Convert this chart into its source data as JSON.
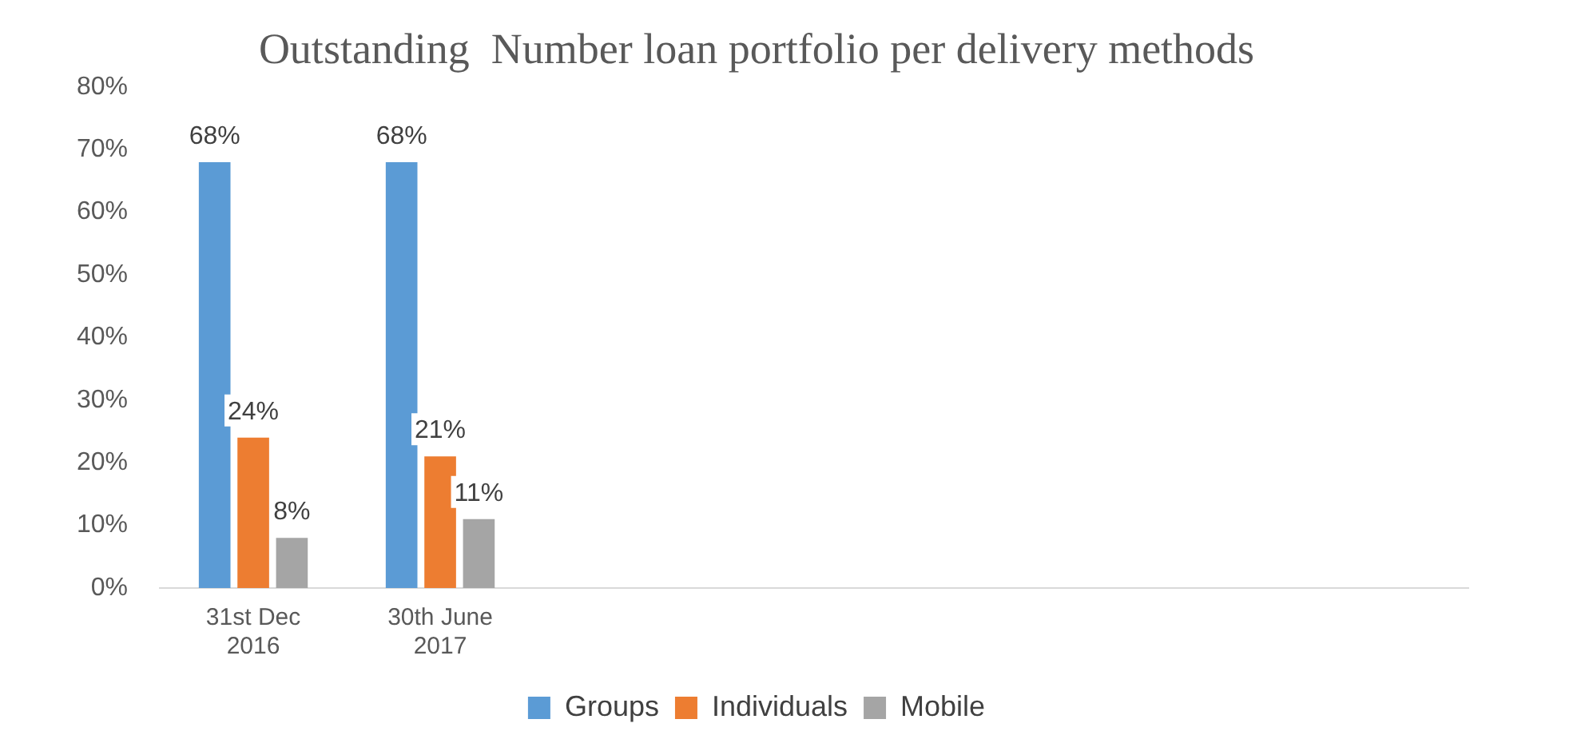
{
  "chart_data": {
    "type": "bar",
    "title": "Outstanding  Number loan portfolio per delivery methods",
    "categories": [
      "31st Dec\n2016",
      "30th June\n2017",
      null,
      null,
      null,
      null,
      null
    ],
    "series": [
      {
        "name": "Groups",
        "color": "#5b9bd5",
        "values": [
          68,
          68,
          null,
          null,
          null,
          null,
          null
        ],
        "value_labels": [
          "68%",
          "68%",
          null,
          null,
          null,
          null,
          null
        ]
      },
      {
        "name": "Individuals",
        "color": "#ed7d31",
        "values": [
          24,
          21,
          null,
          null,
          null,
          null,
          null
        ],
        "value_labels": [
          "24%",
          "21%",
          null,
          null,
          null,
          null,
          null
        ]
      },
      {
        "name": "Mobile",
        "color": "#a5a5a5",
        "values": [
          8,
          11,
          null,
          null,
          null,
          null,
          null
        ],
        "value_labels": [
          "8%",
          "11%",
          null,
          null,
          null,
          null,
          null
        ]
      }
    ],
    "ylim": [
      0,
      80
    ],
    "yticks": [
      {
        "value": 0,
        "label": "0%"
      },
      {
        "value": 10,
        "label": "10%"
      },
      {
        "value": 20,
        "label": "20%"
      },
      {
        "value": 30,
        "label": "30%"
      },
      {
        "value": 40,
        "label": "40%"
      },
      {
        "value": 50,
        "label": "50%"
      },
      {
        "value": 60,
        "label": "60%"
      },
      {
        "value": 70,
        "label": "70%"
      },
      {
        "value": 80,
        "label": "80%"
      }
    ],
    "grid": false,
    "legend": "bottom"
  }
}
